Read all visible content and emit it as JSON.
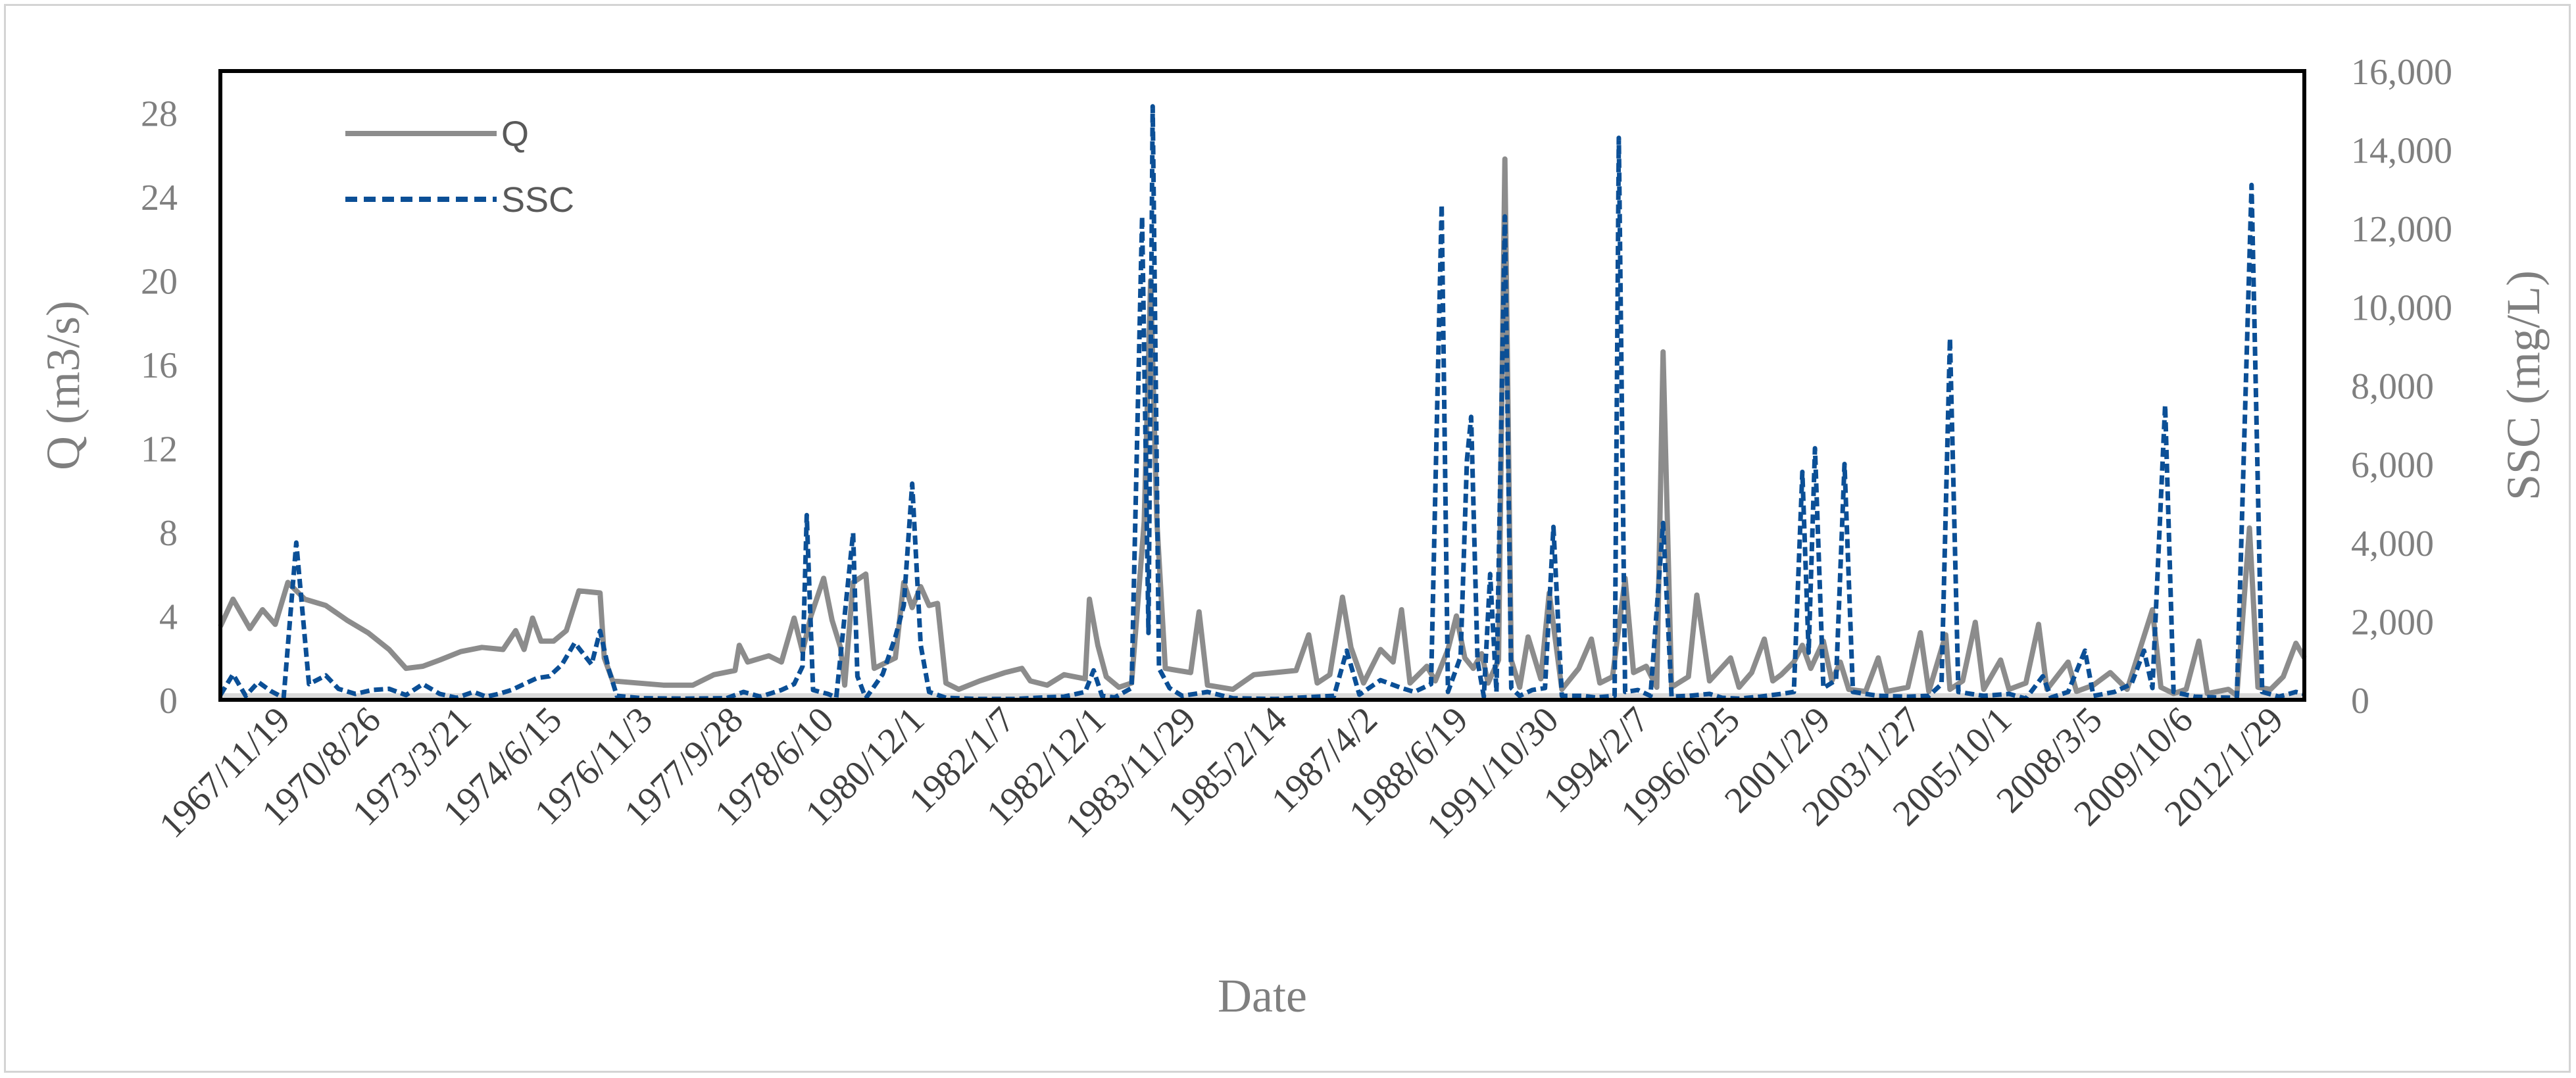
{
  "chart_data": {
    "type": "line",
    "title": "",
    "xlabel": "Date",
    "ylabel_left": "Q (m3/s)",
    "ylabel_right": "SSC (mg/L)",
    "ylim_left": [
      0,
      30
    ],
    "ylim_right": [
      0,
      16000
    ],
    "yticks_left": [
      "0",
      "4",
      "8",
      "12",
      "16",
      "20",
      "24",
      "28"
    ],
    "yticks_right": [
      "0",
      "2,000",
      "4,000",
      "6,000",
      "8,000",
      "10,000",
      "12,000",
      "14,000",
      "16,000"
    ],
    "x_tick_labels": [
      "1967/11/19",
      "1970/8/26",
      "1973/3/21",
      "1974/6/15",
      "1976/11/3",
      "1977/9/28",
      "1978/6/10",
      "1980/12/1",
      "1982/1/7",
      "1982/12/1",
      "1983/11/29",
      "1985/2/14",
      "1987/4/2",
      "1988/6/19",
      "1991/10/30",
      "1994/2/7",
      "1996/6/25",
      "2001/2/9",
      "2003/1/27",
      "2005/10/1",
      "2008/3/5",
      "2009/10/6",
      "2012/1/29"
    ],
    "legend_position": "top-left",
    "grid": false,
    "series": [
      {
        "name": "Q",
        "axis": "left",
        "color": "#8c8c8c",
        "style": "solid",
        "points": [
          [
            0,
            3.5
          ],
          [
            0.3,
            4.8
          ],
          [
            0.7,
            3.4
          ],
          [
            1,
            4.3
          ],
          [
            1.3,
            3.6
          ],
          [
            1.6,
            5.6
          ],
          [
            2,
            4.8
          ],
          [
            2.5,
            4.5
          ],
          [
            3,
            3.8
          ],
          [
            3.5,
            3.2
          ],
          [
            4,
            2.4
          ],
          [
            4.4,
            1.5
          ],
          [
            4.8,
            1.6
          ],
          [
            5.2,
            1.9
          ],
          [
            5.7,
            2.3
          ],
          [
            6.2,
            2.5
          ],
          [
            6.7,
            2.4
          ],
          [
            7,
            3.3
          ],
          [
            7.2,
            2.4
          ],
          [
            7.4,
            3.9
          ],
          [
            7.6,
            2.8
          ],
          [
            7.9,
            2.8
          ],
          [
            8.2,
            3.3
          ],
          [
            8.5,
            5.2
          ],
          [
            9,
            5.1
          ],
          [
            9.1,
            2.0
          ],
          [
            9.3,
            0.9
          ],
          [
            10.5,
            0.7
          ],
          [
            11.2,
            0.7
          ],
          [
            11.7,
            1.2
          ],
          [
            12.2,
            1.4
          ],
          [
            12.3,
            2.6
          ],
          [
            12.5,
            1.8
          ],
          [
            13,
            2.1
          ],
          [
            13.3,
            1.8
          ],
          [
            13.6,
            3.9
          ],
          [
            13.8,
            2.3
          ],
          [
            14,
            4.0
          ],
          [
            14.3,
            5.8
          ],
          [
            14.5,
            3.8
          ],
          [
            14.7,
            2.5
          ],
          [
            14.8,
            0.7
          ],
          [
            15,
            5.6
          ],
          [
            15.3,
            6.0
          ],
          [
            15.5,
            1.5
          ],
          [
            16,
            2.0
          ],
          [
            16.2,
            5.6
          ],
          [
            16.4,
            4.4
          ],
          [
            16.6,
            5.4
          ],
          [
            16.8,
            4.5
          ],
          [
            17,
            4.6
          ],
          [
            17.2,
            0.8
          ],
          [
            17.5,
            0.5
          ],
          [
            18,
            0.9
          ],
          [
            18.6,
            1.3
          ],
          [
            19,
            1.5
          ],
          [
            19.2,
            0.9
          ],
          [
            19.6,
            0.7
          ],
          [
            20,
            1.2
          ],
          [
            20.5,
            1.0
          ],
          [
            20.6,
            4.8
          ],
          [
            20.8,
            2.6
          ],
          [
            21,
            1.1
          ],
          [
            21.3,
            0.6
          ],
          [
            21.6,
            0.8
          ],
          [
            21.9,
            8.5
          ],
          [
            22.05,
            20.0
          ],
          [
            22.2,
            8.5
          ],
          [
            22.4,
            1.5
          ],
          [
            22.7,
            1.4
          ],
          [
            23,
            1.3
          ],
          [
            23.2,
            4.2
          ],
          [
            23.4,
            0.7
          ],
          [
            24,
            0.5
          ],
          [
            24.5,
            1.2
          ],
          [
            25,
            1.3
          ],
          [
            25.5,
            1.4
          ],
          [
            25.8,
            3.1
          ],
          [
            26,
            0.8
          ],
          [
            26.3,
            1.2
          ],
          [
            26.6,
            4.9
          ],
          [
            26.8,
            2.5
          ],
          [
            27.1,
            0.8
          ],
          [
            27.5,
            2.4
          ],
          [
            27.8,
            1.8
          ],
          [
            28,
            4.3
          ],
          [
            28.2,
            0.8
          ],
          [
            28.6,
            1.6
          ],
          [
            28.8,
            0.9
          ],
          [
            29.1,
            2.4
          ],
          [
            29.3,
            4.0
          ],
          [
            29.5,
            2.0
          ],
          [
            29.7,
            1.5
          ],
          [
            29.9,
            2.2
          ],
          [
            30.05,
            0.8
          ],
          [
            30.3,
            1.9
          ],
          [
            30.45,
            25.8
          ],
          [
            30.6,
            1.9
          ],
          [
            30.8,
            0.6
          ],
          [
            31,
            3.0
          ],
          [
            31.3,
            1.0
          ],
          [
            31.5,
            5.1
          ],
          [
            31.8,
            0.5
          ],
          [
            32.2,
            1.5
          ],
          [
            32.5,
            2.9
          ],
          [
            32.7,
            0.8
          ],
          [
            33,
            1.1
          ],
          [
            33.3,
            5.8
          ],
          [
            33.5,
            1.3
          ],
          [
            33.8,
            1.6
          ],
          [
            34.05,
            0.6
          ],
          [
            34.2,
            16.6
          ],
          [
            34.4,
            0.6
          ],
          [
            34.8,
            1.1
          ],
          [
            35,
            5.0
          ],
          [
            35.3,
            0.9
          ],
          [
            35.8,
            2.0
          ],
          [
            36,
            0.6
          ],
          [
            36.3,
            1.3
          ],
          [
            36.6,
            2.9
          ],
          [
            36.8,
            0.9
          ],
          [
            37,
            1.2
          ],
          [
            37.3,
            1.8
          ],
          [
            37.5,
            2.6
          ],
          [
            37.7,
            1.5
          ],
          [
            38,
            2.8
          ],
          [
            38.2,
            0.9
          ],
          [
            38.4,
            1.8
          ],
          [
            38.6,
            0.5
          ],
          [
            39,
            0.4
          ],
          [
            39.3,
            2.0
          ],
          [
            39.5,
            0.4
          ],
          [
            40,
            0.6
          ],
          [
            40.3,
            3.2
          ],
          [
            40.5,
            0.4
          ],
          [
            40.9,
            3.1
          ],
          [
            41,
            0.5
          ],
          [
            41.3,
            0.9
          ],
          [
            41.6,
            3.7
          ],
          [
            41.8,
            0.5
          ],
          [
            42.2,
            1.9
          ],
          [
            42.4,
            0.5
          ],
          [
            42.8,
            0.8
          ],
          [
            43.1,
            3.6
          ],
          [
            43.3,
            0.5
          ],
          [
            43.8,
            1.8
          ],
          [
            44,
            0.4
          ],
          [
            44.4,
            0.7
          ],
          [
            44.8,
            1.3
          ],
          [
            45.2,
            0.5
          ],
          [
            45.5,
            2.4
          ],
          [
            45.8,
            4.3
          ],
          [
            46,
            0.6
          ],
          [
            46.3,
            0.3
          ],
          [
            46.6,
            0.5
          ],
          [
            46.9,
            2.8
          ],
          [
            47.1,
            0.3
          ],
          [
            47.6,
            0.5
          ],
          [
            47.8,
            0.2
          ],
          [
            48.1,
            8.2
          ],
          [
            48.3,
            0.6
          ],
          [
            48.6,
            0.5
          ],
          [
            48.9,
            1.1
          ],
          [
            49.2,
            2.7
          ],
          [
            49.4,
            2.0
          ]
        ]
      },
      {
        "name": "SSC",
        "axis": "right",
        "color": "#0b4f96",
        "style": "dashed",
        "points": [
          [
            0,
            120
          ],
          [
            0.3,
            650
          ],
          [
            0.6,
            100
          ],
          [
            0.9,
            450
          ],
          [
            1.2,
            220
          ],
          [
            1.5,
            50
          ],
          [
            1.8,
            4000
          ],
          [
            2.1,
            400
          ],
          [
            2.5,
            620
          ],
          [
            2.8,
            280
          ],
          [
            3.2,
            150
          ],
          [
            3.6,
            250
          ],
          [
            4,
            280
          ],
          [
            4.4,
            120
          ],
          [
            4.8,
            400
          ],
          [
            5.2,
            150
          ],
          [
            5.6,
            50
          ],
          [
            6,
            200
          ],
          [
            6.3,
            80
          ],
          [
            6.6,
            150
          ],
          [
            6.9,
            250
          ],
          [
            7.2,
            400
          ],
          [
            7.5,
            550
          ],
          [
            7.8,
            600
          ],
          [
            8.1,
            900
          ],
          [
            8.4,
            1450
          ],
          [
            8.8,
            900
          ],
          [
            9,
            1750
          ],
          [
            9.2,
            800
          ],
          [
            9.4,
            100
          ],
          [
            10,
            40
          ],
          [
            11,
            30
          ],
          [
            12,
            40
          ],
          [
            12.4,
            200
          ],
          [
            12.8,
            80
          ],
          [
            13.3,
            250
          ],
          [
            13.6,
            400
          ],
          [
            13.8,
            850
          ],
          [
            13.9,
            4700
          ],
          [
            14.05,
            250
          ],
          [
            14.4,
            150
          ],
          [
            14.6,
            60
          ],
          [
            15,
            4250
          ],
          [
            15.1,
            600
          ],
          [
            15.3,
            40
          ],
          [
            15.7,
            650
          ],
          [
            16,
            1600
          ],
          [
            16.2,
            2400
          ],
          [
            16.4,
            5500
          ],
          [
            16.6,
            1400
          ],
          [
            16.8,
            200
          ],
          [
            17.2,
            50
          ],
          [
            18,
            20
          ],
          [
            18.8,
            20
          ],
          [
            19.5,
            60
          ],
          [
            20,
            80
          ],
          [
            20.5,
            200
          ],
          [
            20.7,
            750
          ],
          [
            20.9,
            100
          ],
          [
            21.2,
            60
          ],
          [
            21.6,
            300
          ],
          [
            21.85,
            12300
          ],
          [
            22.0,
            1700
          ],
          [
            22.1,
            15100
          ],
          [
            22.25,
            800
          ],
          [
            22.5,
            300
          ],
          [
            22.8,
            100
          ],
          [
            23.4,
            200
          ],
          [
            24,
            40
          ],
          [
            25,
            20
          ],
          [
            26,
            80
          ],
          [
            26.4,
            100
          ],
          [
            26.7,
            1250
          ],
          [
            27,
            130
          ],
          [
            27.5,
            500
          ],
          [
            28,
            300
          ],
          [
            28.3,
            200
          ],
          [
            28.7,
            400
          ],
          [
            28.95,
            12600
          ],
          [
            29.1,
            200
          ],
          [
            29.4,
            1100
          ],
          [
            29.55,
            6100
          ],
          [
            29.65,
            7200
          ],
          [
            29.8,
            1000
          ],
          [
            29.95,
            80
          ],
          [
            30.1,
            3200
          ],
          [
            30.25,
            200
          ],
          [
            30.45,
            12300
          ],
          [
            30.6,
            300
          ],
          [
            30.8,
            100
          ],
          [
            31.1,
            250
          ],
          [
            31.4,
            300
          ],
          [
            31.6,
            4400
          ],
          [
            31.8,
            100
          ],
          [
            32.3,
            100
          ],
          [
            32.6,
            60
          ],
          [
            33.05,
            100
          ],
          [
            33.15,
            14300
          ],
          [
            33.3,
            200
          ],
          [
            33.6,
            250
          ],
          [
            33.9,
            100
          ],
          [
            34.2,
            4500
          ],
          [
            34.4,
            80
          ],
          [
            34.8,
            100
          ],
          [
            35.3,
            150
          ],
          [
            35.6,
            50
          ],
          [
            36,
            30
          ],
          [
            36.5,
            80
          ],
          [
            37,
            150
          ],
          [
            37.3,
            200
          ],
          [
            37.5,
            5800
          ],
          [
            37.65,
            1200
          ],
          [
            37.8,
            6400
          ],
          [
            38.0,
            300
          ],
          [
            38.3,
            500
          ],
          [
            38.5,
            6000
          ],
          [
            38.7,
            200
          ],
          [
            39.3,
            100
          ],
          [
            40,
            80
          ],
          [
            40.5,
            100
          ],
          [
            40.8,
            400
          ],
          [
            41.0,
            9200
          ],
          [
            41.2,
            200
          ],
          [
            41.8,
            100
          ],
          [
            42.4,
            150
          ],
          [
            42.8,
            30
          ],
          [
            43.2,
            600
          ],
          [
            43.4,
            60
          ],
          [
            43.8,
            200
          ],
          [
            44.2,
            1250
          ],
          [
            44.4,
            100
          ],
          [
            44.9,
            200
          ],
          [
            45.3,
            400
          ],
          [
            45.6,
            1250
          ],
          [
            45.8,
            300
          ],
          [
            46.1,
            7500
          ],
          [
            46.3,
            200
          ],
          [
            46.8,
            80
          ],
          [
            47.3,
            60
          ],
          [
            47.8,
            50
          ],
          [
            48.15,
            13100
          ],
          [
            48.4,
            200
          ],
          [
            48.8,
            80
          ],
          [
            49.2,
            200
          ],
          [
            49.4,
            150
          ]
        ]
      }
    ]
  }
}
